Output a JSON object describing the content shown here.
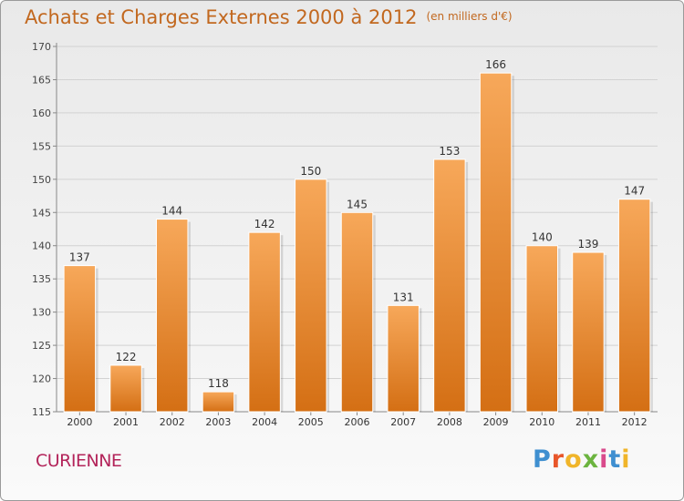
{
  "header": {
    "title": "Achats et Charges Externes 2000 à 2012",
    "unit": "(en milliers d'€)"
  },
  "footer": {
    "commune": "CURIENNE",
    "logo_letters": [
      "P",
      "r",
      "o",
      "x",
      "i",
      "t",
      "i"
    ]
  },
  "colors": {
    "title": "#c2681f",
    "commune": "#b3245a",
    "bar_top": "#f7a85a",
    "bar_bottom": "#d46f14",
    "logo": [
      "#3f8fd0",
      "#e8562a",
      "#f0b52a",
      "#6cb43f",
      "#d94a8c",
      "#3f8fd0",
      "#f0b52a"
    ]
  },
  "chart_data": {
    "type": "bar",
    "categories": [
      "2000",
      "2001",
      "2002",
      "2003",
      "2004",
      "2005",
      "2006",
      "2007",
      "2008",
      "2009",
      "2010",
      "2011",
      "2012"
    ],
    "values": [
      137,
      122,
      144,
      118,
      142,
      150,
      145,
      131,
      153,
      166,
      140,
      139,
      147
    ],
    "ylim": [
      115,
      170
    ],
    "yticks": [
      115,
      120,
      125,
      130,
      135,
      140,
      145,
      150,
      155,
      160,
      165,
      170
    ],
    "grid": "horizontal",
    "data_labels": true
  }
}
